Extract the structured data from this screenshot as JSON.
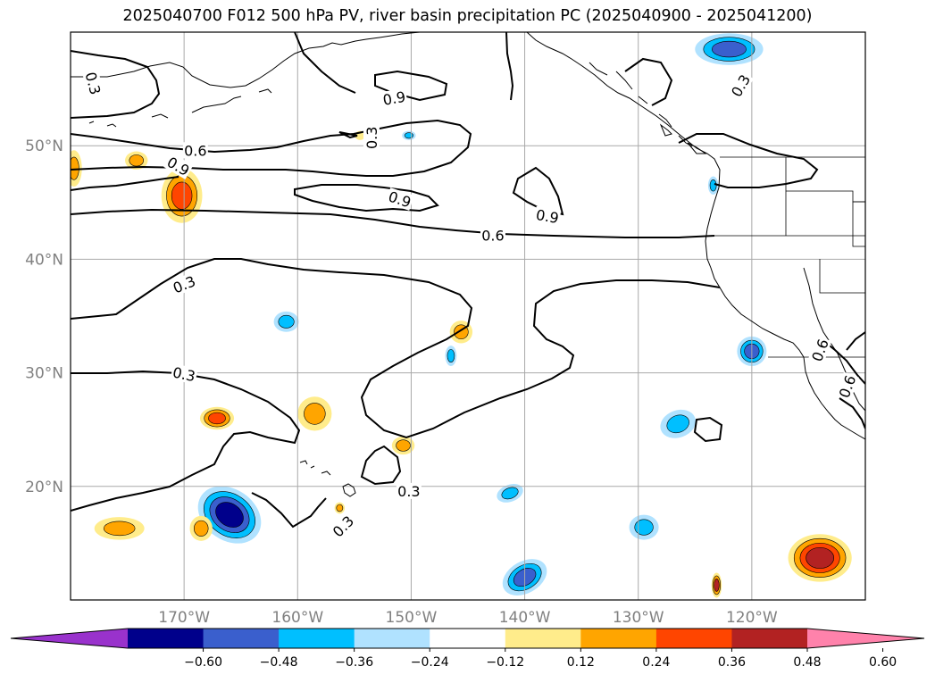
{
  "title": "2025040700 F012 500 hPa PV, river basin precipitation PC (2025040900 - 2025041200)",
  "map": {
    "projection": "cylindrical",
    "extent": {
      "lon_min": -180,
      "lon_max": -110,
      "lat_min": 10,
      "lat_max": 60
    },
    "gridlines": true,
    "lat_labels": [
      {
        "lat": 50,
        "text": "50°N"
      },
      {
        "lat": 40,
        "text": "40°N"
      },
      {
        "lat": 30,
        "text": "30°N"
      },
      {
        "lat": 20,
        "text": "20°N"
      }
    ],
    "lon_labels": [
      {
        "lon": -170,
        "text": "170°W"
      },
      {
        "lon": -160,
        "text": "160°W"
      },
      {
        "lon": -150,
        "text": "150°W"
      },
      {
        "lon": -140,
        "text": "140°W"
      },
      {
        "lon": -130,
        "text": "130°W"
      },
      {
        "lon": -120,
        "text": "120°W"
      }
    ],
    "contour_labels": [
      {
        "text": "0.3",
        "lon": -178,
        "lat": 55.5,
        "rotate": 75
      },
      {
        "text": "0.9",
        "lon": -151.5,
        "lat": 54.2,
        "rotate": -10
      },
      {
        "text": "0.3",
        "lon": -153.5,
        "lat": 50.7,
        "rotate": -90
      },
      {
        "text": "0.3",
        "lon": -121,
        "lat": 55.3,
        "rotate": -60
      },
      {
        "text": "0.6",
        "lon": -169,
        "lat": 49.6,
        "rotate": 0
      },
      {
        "text": "0.9",
        "lon": -170.5,
        "lat": 48.2,
        "rotate": 30
      },
      {
        "text": "0.9",
        "lon": -151,
        "lat": 45.3,
        "rotate": 18
      },
      {
        "text": "0.9",
        "lon": -138,
        "lat": 43.8,
        "rotate": 10
      },
      {
        "text": "0.6",
        "lon": -142.8,
        "lat": 42.1,
        "rotate": 0
      },
      {
        "text": "0.3",
        "lon": -170,
        "lat": 37.8,
        "rotate": -22
      },
      {
        "text": "0.3",
        "lon": -170,
        "lat": 29.9,
        "rotate": 12
      },
      {
        "text": "0.3",
        "lon": -150.2,
        "lat": 19.6,
        "rotate": 0
      },
      {
        "text": "0.3",
        "lon": -156,
        "lat": 16.5,
        "rotate": -45
      },
      {
        "text": "0.6",
        "lon": -114,
        "lat": 32.0,
        "rotate": -70
      },
      {
        "text": "0.6",
        "lon": -111.6,
        "lat": 28.8,
        "rotate": -70
      }
    ]
  },
  "colorbar": {
    "colors": [
      "#9932cc",
      "#00008b",
      "#3a5fcd",
      "#00bfff",
      "#b0e2ff",
      "#ffffff",
      "#ffec8b",
      "#ffa500",
      "#ff4500",
      "#b22222",
      "#ff82ab"
    ],
    "tick_labels": [
      "−0.60",
      "−0.48",
      "−0.36",
      "−0.24",
      "−0.12",
      "0.12",
      "0.24",
      "0.36",
      "0.48",
      "0.60"
    ]
  },
  "precipitation_blobs": [
    {
      "lon": -166,
      "lat": 17.5,
      "w": 6,
      "h": 4.5,
      "rot": 35,
      "levels": [
        "#b0e2ff",
        "#00bfff",
        "#3a5fcd",
        "#00008b"
      ]
    },
    {
      "lon": -122,
      "lat": 58.5,
      "w": 6,
      "h": 2.8,
      "rot": 0,
      "levels": [
        "#b0e2ff",
        "#00bfff",
        "#3a5fcd"
      ]
    },
    {
      "lon": -161,
      "lat": 34.5,
      "w": 2.2,
      "h": 1.8,
      "rot": 0,
      "levels": [
        "#b0e2ff",
        "#00bfff"
      ]
    },
    {
      "lon": -146.5,
      "lat": 31.5,
      "w": 1.0,
      "h": 1.8,
      "rot": 0,
      "levels": [
        "#b0e2ff",
        "#00bfff"
      ]
    },
    {
      "lon": -150.2,
      "lat": 50.9,
      "w": 1.2,
      "h": 0.8,
      "rot": 0,
      "levels": [
        "#b0e2ff",
        "#00bfff"
      ]
    },
    {
      "lon": -123.4,
      "lat": 46.5,
      "w": 0.9,
      "h": 1.6,
      "rot": 0,
      "levels": [
        "#b0e2ff",
        "#00bfff"
      ]
    },
    {
      "lon": -120,
      "lat": 31.9,
      "w": 2.6,
      "h": 2.6,
      "rot": 0,
      "levels": [
        "#b0e2ff",
        "#00bfff",
        "#3a5fcd"
      ]
    },
    {
      "lon": -126.5,
      "lat": 25.5,
      "w": 3.2,
      "h": 2.4,
      "rot": -20,
      "levels": [
        "#b0e2ff",
        "#00bfff"
      ]
    },
    {
      "lon": -141.3,
      "lat": 19.4,
      "w": 2.4,
      "h": 1.5,
      "rot": -20,
      "levels": [
        "#b0e2ff",
        "#00bfff"
      ]
    },
    {
      "lon": -129.5,
      "lat": 16.4,
      "w": 2.6,
      "h": 2.2,
      "rot": 0,
      "levels": [
        "#b0e2ff",
        "#00bfff"
      ]
    },
    {
      "lon": -140,
      "lat": 12.0,
      "w": 4.2,
      "h": 2.8,
      "rot": -30,
      "levels": [
        "#b0e2ff",
        "#00bfff",
        "#3a5fcd"
      ]
    },
    {
      "lon": -175.7,
      "lat": 16.3,
      "w": 4.4,
      "h": 2.0,
      "rot": 0,
      "levels": [
        "#ffec8b",
        "#ffa500"
      ]
    },
    {
      "lon": -168.5,
      "lat": 16.3,
      "w": 2.0,
      "h": 2.2,
      "rot": 0,
      "levels": [
        "#ffec8b",
        "#ffa500"
      ]
    },
    {
      "lon": -170.2,
      "lat": 45.6,
      "w": 3.6,
      "h": 4.8,
      "rot": 0,
      "levels": [
        "#ffec8b",
        "#ffa500",
        "#ff4500"
      ]
    },
    {
      "lon": -179.7,
      "lat": 48.0,
      "w": 1.4,
      "h": 3.2,
      "rot": 0,
      "levels": [
        "#ffec8b",
        "#ffa500"
      ]
    },
    {
      "lon": -174.2,
      "lat": 48.7,
      "w": 2.0,
      "h": 1.6,
      "rot": 0,
      "levels": [
        "#ffec8b",
        "#ffa500"
      ]
    },
    {
      "lon": -167.1,
      "lat": 26.0,
      "w": 3.0,
      "h": 2.0,
      "rot": 0,
      "levels": [
        "#ffec8b",
        "#ffa500",
        "#ff4500"
      ]
    },
    {
      "lon": -158.5,
      "lat": 26.4,
      "w": 3.0,
      "h": 3.0,
      "rot": 0,
      "levels": [
        "#ffec8b",
        "#ffa500"
      ]
    },
    {
      "lon": -145.6,
      "lat": 33.6,
      "w": 2.0,
      "h": 2.0,
      "rot": 0,
      "levels": [
        "#ffec8b",
        "#ffa500"
      ]
    },
    {
      "lon": -150.7,
      "lat": 23.6,
      "w": 2.0,
      "h": 1.6,
      "rot": 0,
      "levels": [
        "#ffec8b",
        "#ffa500"
      ]
    },
    {
      "lon": -154.5,
      "lat": 50.9,
      "w": 0.9,
      "h": 0.8,
      "rot": 0,
      "levels": [
        "#ffec8b"
      ]
    },
    {
      "lon": -156.3,
      "lat": 18.1,
      "w": 0.9,
      "h": 1.0,
      "rot": 0,
      "levels": [
        "#ffec8b",
        "#ffa500"
      ]
    },
    {
      "lon": -123.1,
      "lat": 11.3,
      "w": 0.9,
      "h": 2.2,
      "rot": 0,
      "levels": [
        "#ffec8b",
        "#ffa500",
        "#b22222"
      ]
    },
    {
      "lon": -114,
      "lat": 13.7,
      "w": 5.6,
      "h": 4.2,
      "rot": 0,
      "levels": [
        "#ffec8b",
        "#ffa500",
        "#ff4500",
        "#b22222"
      ]
    }
  ]
}
